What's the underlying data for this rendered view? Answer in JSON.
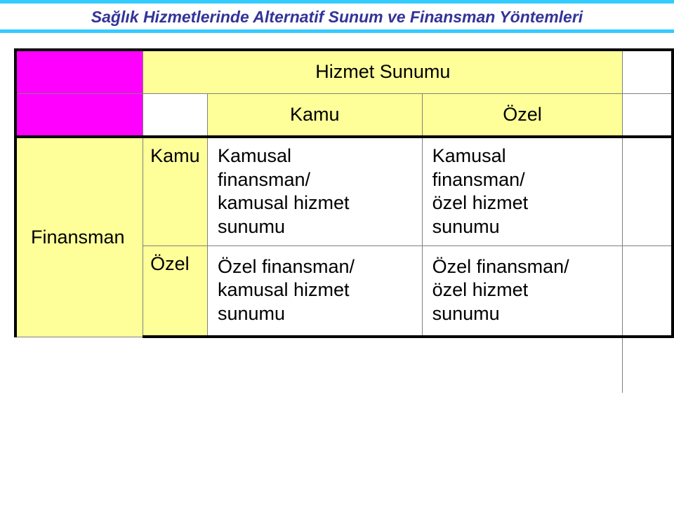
{
  "colors": {
    "topbar": "#33ccff",
    "title_color": "#333399",
    "corner_bg": "#ff00ff",
    "header_bg": "#ffff99",
    "row_bg": "#ffff99",
    "cell_border": "#808080",
    "thick_border": "#000000"
  },
  "title": "Sağlık Hizmetlerinde Alternatif Sunum ve Finansman Yöntemleri",
  "colspan_header": "Hizmet Sunumu",
  "sub_left": "Kamu",
  "sub_right": "Özel",
  "side_header": "Finansman",
  "row_top_label": "Kamu",
  "row_bot_label": "Özel",
  "cell_top_left_l1": "Kamusal",
  "cell_top_left_l2": "finansman/",
  "cell_top_left_l3": "kamusal hizmet",
  "cell_top_left_l4": "sunumu",
  "cell_top_right_l1": "Kamusal",
  "cell_top_right_l2": "finansman/",
  "cell_top_right_l3": "özel hizmet",
  "cell_top_right_l4": "sunumu",
  "cell_bot_left_l1": "Özel finansman/",
  "cell_bot_left_l2": "kamusal  hizmet",
  "cell_bot_left_l3": "sunumu",
  "cell_bot_right_l1": "Özel finansman/",
  "cell_bot_right_l2": "özel hizmet",
  "cell_bot_right_l3": "sunumu"
}
